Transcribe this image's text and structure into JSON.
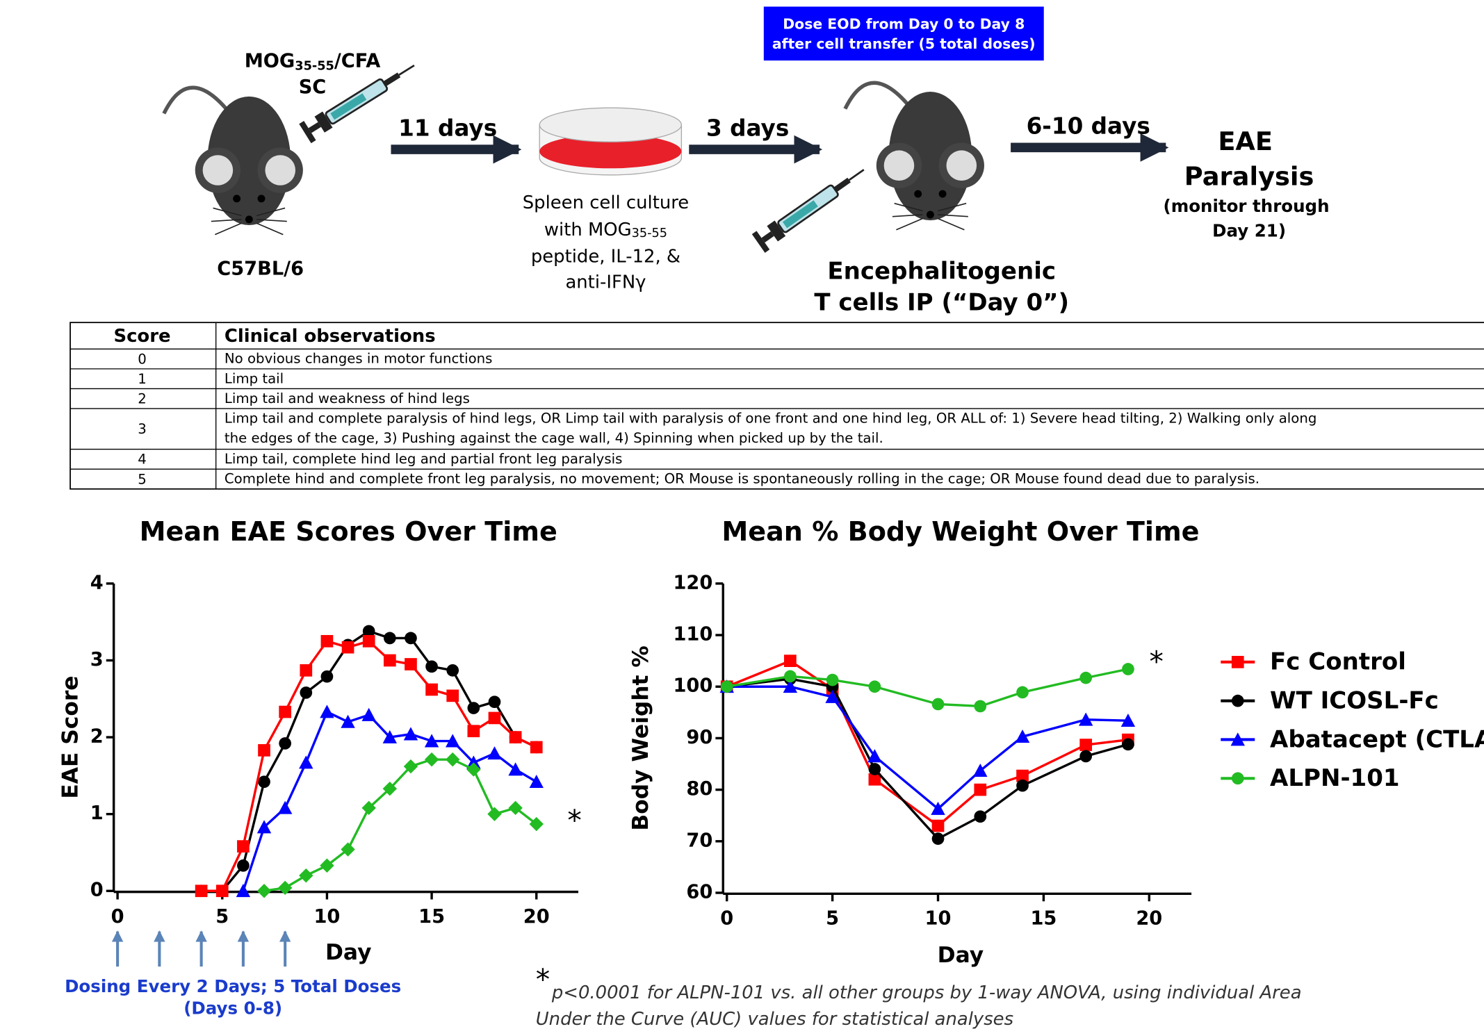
{
  "schematic": {
    "injection": {
      "parts": [
        "MOG",
        "35-55",
        "/CFA"
      ],
      "route": "SC"
    },
    "strain": "C57BL/6",
    "step1": "11 days",
    "culture": {
      "line1": "Spleen cell culture",
      "line2": {
        "text": "with MOG",
        "sub": "35-55"
      },
      "line3": "peptide, IL-12, &",
      "line4": "anti-IFNγ"
    },
    "step2": "3 days",
    "dosing_box": [
      "Dose EOD from Day 0 to Day 8",
      "after cell transfer (5 total doses)"
    ],
    "transfer": [
      "Encephalitogenic",
      "T cells IP (“Day 0”)"
    ],
    "step3": "6-10 days",
    "outcome": [
      "EAE",
      "Paralysis"
    ],
    "monitor": [
      "(monitor through",
      "Day 21)"
    ]
  },
  "table": {
    "header": [
      "Score",
      "Clinical observations"
    ],
    "rows": [
      [
        0,
        [
          "No obvious changes in motor functions"
        ]
      ],
      [
        1,
        [
          "Limp tail"
        ]
      ],
      [
        2,
        [
          "Limp tail and weakness of hind legs"
        ]
      ],
      [
        3,
        [
          "Limp tail and complete paralysis of hind legs, OR Limp tail with paralysis of one front and one hind leg, OR ALL of: 1) Severe head tilting, 2) Walking only along",
          "the edges of the cage, 3) Pushing against the cage wall, 4) Spinning when picked up by the tail."
        ]
      ],
      [
        4,
        [
          "Limp tail, complete hind leg and partial front leg paralysis"
        ]
      ],
      [
        5,
        [
          "Complete hind and complete front leg paralysis, no movement; OR Mouse is spontaneously rolling in the cage; OR Mouse found dead due to paralysis."
        ]
      ]
    ]
  },
  "chart_data": [
    {
      "type": "line",
      "title": "Mean EAE Scores Over Time",
      "x_label": "Day",
      "y_label": "EAE Score",
      "x": [
        4,
        5,
        6,
        7,
        8,
        9,
        10,
        11,
        12,
        13,
        14,
        15,
        16,
        17,
        18,
        19,
        20
      ],
      "xlim": [
        0,
        22
      ],
      "ylim": [
        0,
        4
      ],
      "xticks": [
        0,
        5,
        10,
        15,
        20
      ],
      "yticks": [
        0,
        1,
        2,
        3,
        4
      ],
      "series": [
        {
          "color": "#000000",
          "marker": "circle",
          "values": [
            0,
            0,
            0.33,
            1.42,
            1.92,
            2.58,
            2.79,
            3.2,
            3.38,
            3.29,
            3.29,
            2.92,
            2.87,
            2.38,
            2.46,
            2.0,
            1.87
          ]
        },
        {
          "color": "#0000ff",
          "marker": "triangle",
          "values": [
            null,
            null,
            0,
            0.83,
            1.08,
            1.67,
            2.33,
            2.2,
            2.29,
            2.0,
            2.04,
            1.95,
            1.95,
            1.67,
            1.79,
            1.58,
            1.42
          ]
        },
        {
          "color": "#22bb22",
          "marker": "diamond",
          "values": [
            null,
            null,
            null,
            0,
            0.04,
            0.2,
            0.33,
            0.54,
            1.08,
            1.33,
            1.62,
            1.71,
            1.71,
            1.58,
            1.0,
            1.08,
            0.87
          ]
        },
        {
          "color": "#ff0000",
          "marker": "square",
          "values": [
            0,
            0,
            0.58,
            1.83,
            2.33,
            2.87,
            3.25,
            3.17,
            3.25,
            3.0,
            2.95,
            2.62,
            2.54,
            2.08,
            2.25,
            2.0,
            1.87
          ]
        }
      ],
      "annotation": "*",
      "dose_days": [
        0,
        2,
        4,
        6,
        8
      ],
      "dose_label": [
        "Dosing Every 2 Days; 5 Total Doses",
        "(Days 0-8)"
      ]
    },
    {
      "type": "line",
      "title": "Mean % Body Weight Over Time",
      "x_label": "Day",
      "y_label": "Body Weight %",
      "x": [
        0,
        3,
        5,
        7,
        10,
        12,
        14,
        17,
        19
      ],
      "xlim": [
        0,
        22
      ],
      "ylim": [
        60,
        120
      ],
      "xticks": [
        0,
        5,
        10,
        15,
        20
      ],
      "yticks": [
        60,
        70,
        80,
        90,
        100,
        110,
        120
      ],
      "series": [
        {
          "name": "Fc Control",
          "color": "#ff0000",
          "marker": "square",
          "values": [
            100,
            105,
            99.5,
            82,
            73,
            80,
            82.7,
            88.7,
            89.7
          ]
        },
        {
          "name": "WT ICOSL-Fc",
          "color": "#000000",
          "marker": "circle",
          "values": [
            100,
            101.5,
            100,
            84,
            70.5,
            74.8,
            80.8,
            86.5,
            88.8
          ]
        },
        {
          "name": "Abatacept (CTLA",
          "color": "#0000ff",
          "marker": "triangle",
          "values": [
            100,
            100,
            98,
            86.5,
            76.3,
            83.7,
            90.3,
            93.6,
            93.4
          ]
        },
        {
          "name": "ALPN-101",
          "color": "#22bb22",
          "marker": "circle",
          "values": [
            100,
            102,
            101.3,
            100,
            96.6,
            96.2,
            98.9,
            101.7,
            103.4
          ]
        }
      ],
      "legend": "right",
      "annotation": "*"
    }
  ],
  "footnote": {
    "symbol": "*",
    "lines": [
      "p<0.0001 for ALPN-101 vs. all other groups by 1-way ANOVA, using individual Area",
      "Under the Curve (AUC) values for statistical analyses"
    ]
  }
}
